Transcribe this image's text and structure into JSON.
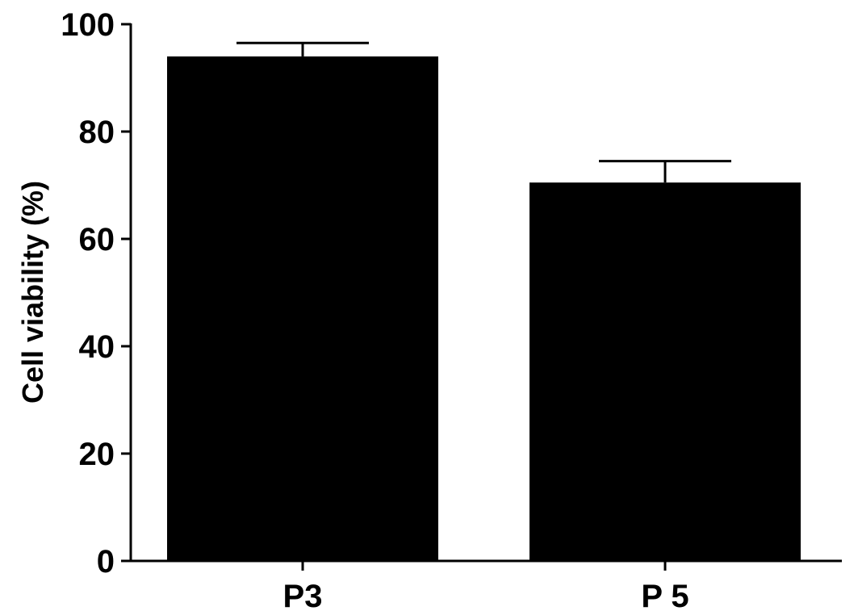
{
  "chart_data": {
    "type": "bar",
    "title": "",
    "xlabel": "",
    "ylabel": "Cell viability (%)",
    "categories": [
      "P3",
      "P 5"
    ],
    "values": [
      94,
      70.5
    ],
    "error": [
      2.5,
      4
    ],
    "ylim": [
      0,
      100
    ],
    "yticks": [
      0,
      20,
      40,
      60,
      80,
      100
    ],
    "ytick_labels": [
      "0",
      "20",
      "40",
      "60",
      "80",
      "100"
    ],
    "grid": false,
    "legend": "none",
    "bar_color": "#000000"
  }
}
